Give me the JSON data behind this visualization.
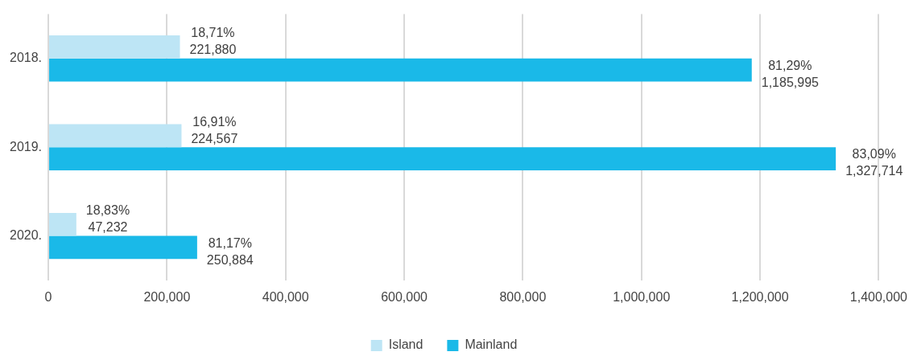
{
  "chart_data": {
    "type": "bar",
    "orientation": "horizontal",
    "categories": [
      "2018.",
      "2019.",
      "2020."
    ],
    "series": [
      {
        "name": "Island",
        "color": "#bde5f5",
        "values": [
          221880,
          224567,
          47232
        ],
        "value_labels": [
          "18,71%\n221,880",
          "16,91%\n224,567",
          "18,83%\n47,232"
        ]
      },
      {
        "name": "Mainland",
        "color": "#1ab9e8",
        "values": [
          1185995,
          1327714,
          250884
        ],
        "value_labels": [
          "81,29%\n1,185,995",
          "83,09%\n1,327,714",
          "81,17%\n250,884"
        ]
      }
    ],
    "xlim": [
      0,
      1400000
    ],
    "xticks": [
      {
        "value": 0,
        "label": "0"
      },
      {
        "value": 200000,
        "label": "200,000"
      },
      {
        "value": 400000,
        "label": "400,000"
      },
      {
        "value": 600000,
        "label": "600,000"
      },
      {
        "value": 800000,
        "label": "800,000"
      },
      {
        "value": 1000000,
        "label": "1,000,000"
      },
      {
        "value": 1200000,
        "label": "1,200,000"
      },
      {
        "value": 1400000,
        "label": "1,400,000"
      }
    ],
    "grid": "x",
    "legend": "bottom"
  }
}
